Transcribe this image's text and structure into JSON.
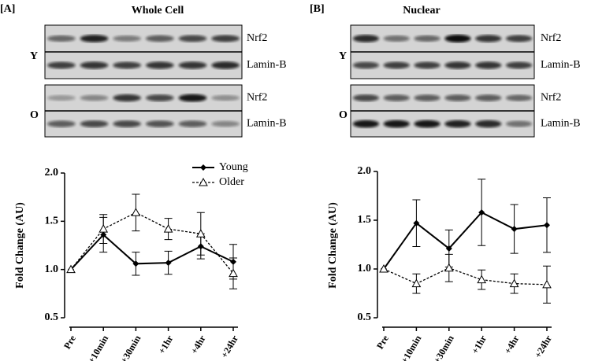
{
  "figure": {
    "panels": [
      {
        "label": "[A]",
        "title": "Whole Cell",
        "rows": [
          {
            "group": "Y",
            "bands": [
              "Nrf2",
              "Lamin-B"
            ]
          },
          {
            "group": "O",
            "bands": [
              "Nrf2",
              "Lamin-B"
            ]
          }
        ]
      },
      {
        "label": "[B]",
        "title": "Nuclear",
        "rows": [
          {
            "group": "Y",
            "bands": [
              "Nrf2",
              "Lamin-B"
            ]
          },
          {
            "group": "O",
            "bands": [
              "Nrf2",
              "Lamin-B"
            ]
          }
        ]
      }
    ]
  },
  "chart_data": [
    {
      "type": "line",
      "ylabel": "Fold Change (AU)",
      "categories": [
        "Pre",
        "+10min",
        "+30min",
        "+1hr",
        "+4hr",
        "+24hr"
      ],
      "ylim": [
        0.5,
        2.0
      ],
      "yticks": [
        {
          "value": 0.5,
          "label": "0.5"
        },
        {
          "value": 1,
          "label": "1.0"
        },
        {
          "value": 1.5,
          "label": "1.5"
        },
        {
          "value": 2,
          "label": "2.0"
        }
      ],
      "legend": "top-right",
      "series": [
        {
          "name": "Young",
          "color": "#000000",
          "marker": "diamond",
          "dashed": false,
          "values": [
            1.0,
            1.36,
            1.06,
            1.07,
            1.24,
            1.08
          ],
          "errors": [
            0,
            0.18,
            0.12,
            0.12,
            0.13,
            0.18
          ]
        },
        {
          "name": "Older",
          "color": "#000000",
          "marker": "open-triangle",
          "dashed": true,
          "values": [
            1.0,
            1.42,
            1.59,
            1.42,
            1.37,
            0.96
          ],
          "errors": [
            0,
            0.15,
            0.19,
            0.11,
            0.22,
            0.16
          ]
        }
      ]
    },
    {
      "type": "line",
      "ylabel": "Fold Change (AU)",
      "categories": [
        "Pre",
        "+10min",
        "+30min",
        "+1hr",
        "+4hr",
        "+24hr"
      ],
      "ylim": [
        0.5,
        2.0
      ],
      "yticks": [
        {
          "value": 0.5,
          "label": "0.5"
        },
        {
          "value": 1,
          "label": "1.0"
        },
        {
          "value": 1.5,
          "label": "1.5"
        },
        {
          "value": 2,
          "label": "2.0"
        }
      ],
      "series": [
        {
          "color": "#000000",
          "marker": "diamond",
          "dashed": false,
          "values": [
            1.0,
            1.47,
            1.21,
            1.58,
            1.41,
            1.45
          ],
          "errors": [
            0,
            0.24,
            0.19,
            0.34,
            0.25,
            0.28
          ]
        },
        {
          "color": "#000000",
          "marker": "open-triangle",
          "dashed": true,
          "values": [
            1.0,
            0.85,
            1.01,
            0.89,
            0.85,
            0.84
          ],
          "errors": [
            0,
            0.1,
            0.14,
            0.1,
            0.1,
            0.19
          ]
        }
      ]
    }
  ]
}
